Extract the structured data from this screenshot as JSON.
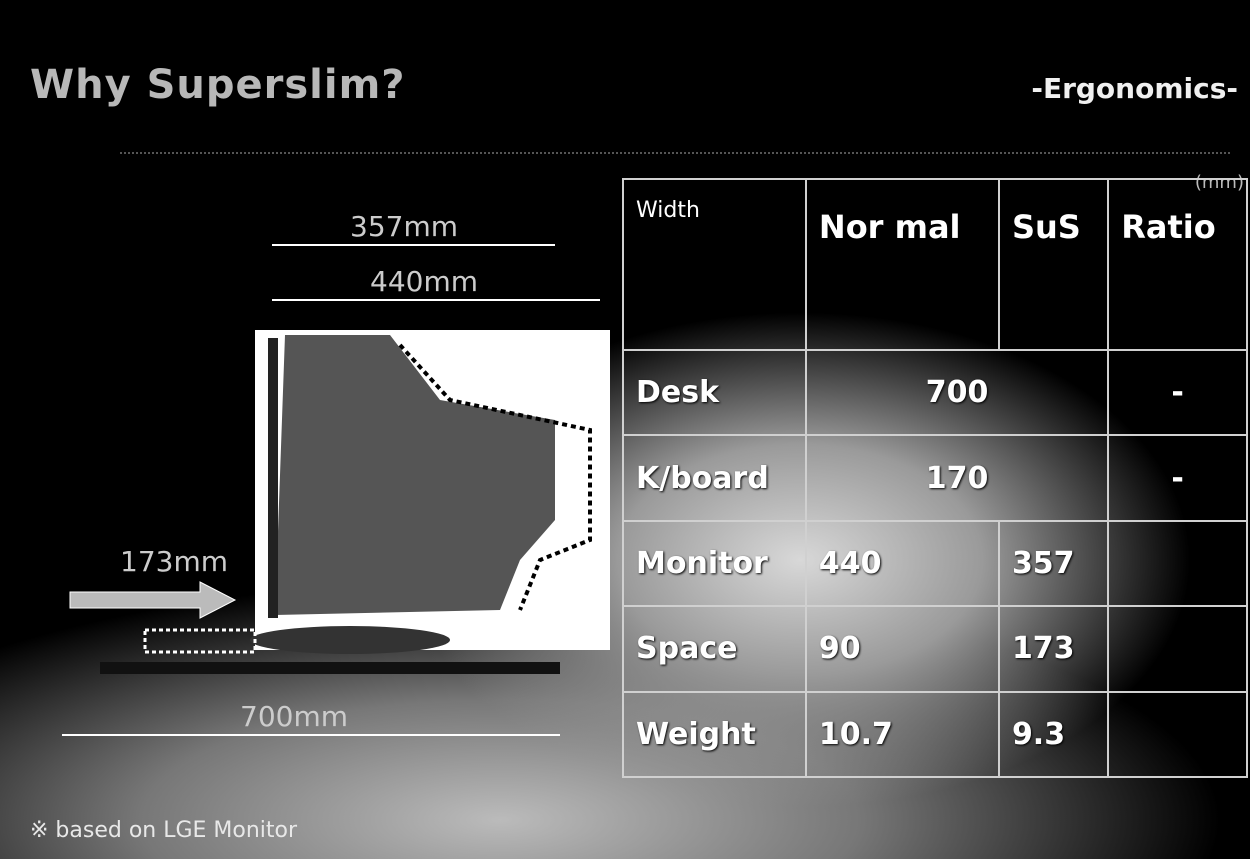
{
  "header": {
    "title": "Why Superslim?",
    "subtitle": "-Ergonomics-"
  },
  "diagram": {
    "labels": [
      "357mm",
      "440mm",
      "173mm",
      "700mm"
    ]
  },
  "table": {
    "unit": "(mm)",
    "header": [
      "Width",
      "Nor mal",
      "SuS",
      "Ratio"
    ],
    "rows": [
      {
        "label": "Desk",
        "shared": 700,
        "ratio": "-"
      },
      {
        "label": "K/board",
        "shared": 170,
        "ratio": "-"
      },
      {
        "label": "Monitor",
        "normal": 440,
        "sus": 357
      },
      {
        "label": "Space",
        "normal": 90,
        "sus": 173
      },
      {
        "label": "Weight",
        "normal": 10.7,
        "sus": 9.3
      }
    ]
  },
  "footnote": "※ based on LGE Monitor"
}
